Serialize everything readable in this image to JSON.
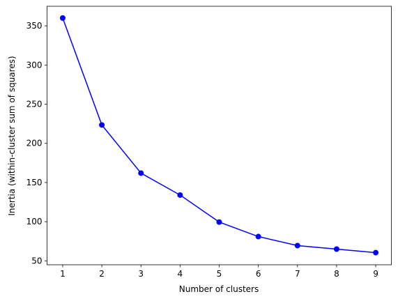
{
  "chart_data": {
    "type": "line",
    "x_label": "Number of clusters",
    "y_label": "Inertia (within-cluster sum of squares)",
    "x": [
      1,
      2,
      3,
      4,
      5,
      6,
      7,
      8,
      9
    ],
    "series": [
      {
        "color": "#0000ff",
        "marker": "o",
        "values": [
          360,
          223.5,
          162,
          134,
          99.5,
          81,
          69.5,
          65,
          60.5
        ]
      }
    ],
    "xlim": [
      0.6,
      9.4
    ],
    "xticks": [
      1,
      2,
      3,
      4,
      5,
      6,
      7,
      8,
      9
    ],
    "ylim": [
      45,
      375
    ],
    "yticks": [
      50,
      100,
      150,
      200,
      250,
      300,
      350
    ],
    "grid": false
  }
}
